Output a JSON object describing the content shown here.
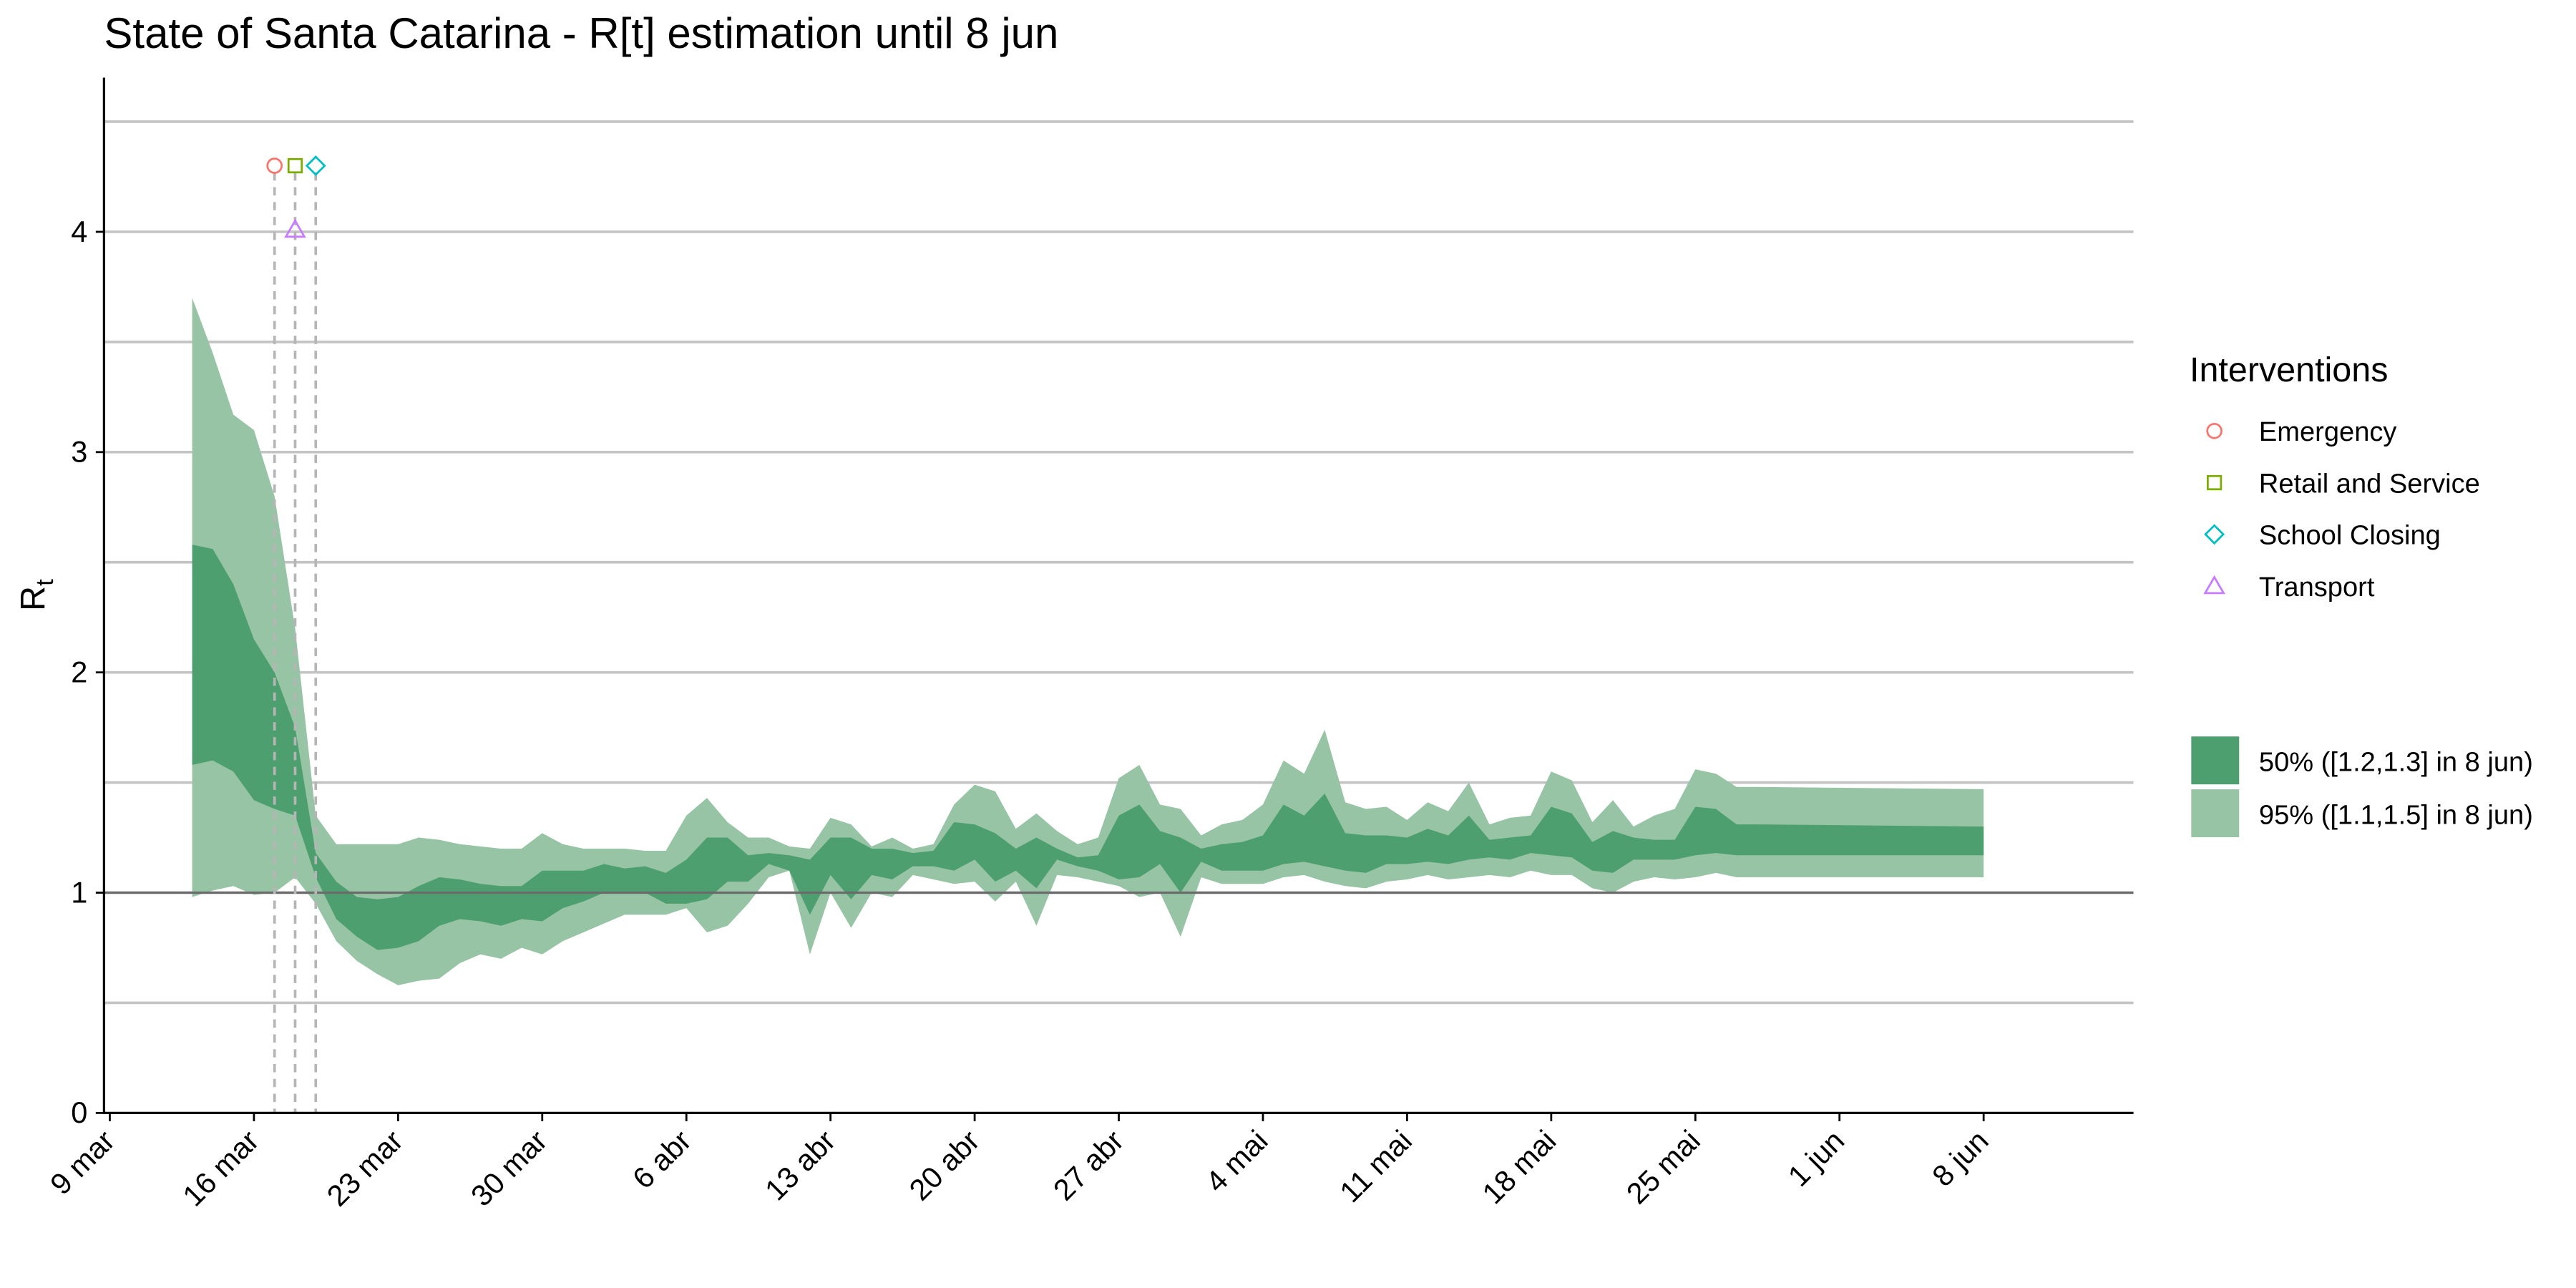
{
  "chart_data": {
    "type": "area",
    "title": "State of Santa Catarina - R[t] estimation until 8 jun",
    "ylabel": {
      "main": "R",
      "sub": "t"
    },
    "xlabel": "",
    "ylim": [
      0,
      4.7
    ],
    "x_range": [
      0,
      93
    ],
    "y_ticks": [
      0,
      1,
      2,
      3,
      4
    ],
    "minor_grid_y": [
      0.5,
      1.5,
      2.5,
      3.5,
      4.5
    ],
    "x_ticks": [
      {
        "label": "9 mar",
        "day": 0
      },
      {
        "label": "16 mar",
        "day": 7
      },
      {
        "label": "23 mar",
        "day": 14
      },
      {
        "label": "30 mar",
        "day": 21
      },
      {
        "label": "6 abr",
        "day": 28
      },
      {
        "label": "13 abr",
        "day": 35
      },
      {
        "label": "20 abr",
        "day": 42
      },
      {
        "label": "27 abr",
        "day": 49
      },
      {
        "label": "4 mai",
        "day": 56
      },
      {
        "label": "11 mai",
        "day": 63
      },
      {
        "label": "18 mai",
        "day": 70
      },
      {
        "label": "25 mai",
        "day": 77
      },
      {
        "label": "1 jun",
        "day": 84
      },
      {
        "label": "8 jun",
        "day": 91
      }
    ],
    "grid": true,
    "reference_line_y": 1,
    "colors": {
      "band50": "#4e9f70",
      "band95": "#97c4a5",
      "grid": "#c4c4c4",
      "refline": "#6b6b6b"
    },
    "series": [
      {
        "name": "95% ([1.1,1.5] in  8 jun)",
        "x": [
          4,
          5,
          6,
          7,
          8,
          9,
          10,
          11,
          12,
          13,
          14,
          15,
          16,
          17,
          18,
          19,
          20,
          21,
          22,
          23,
          24,
          25,
          26,
          27,
          28,
          29,
          30,
          31,
          32,
          33,
          34,
          35,
          36,
          37,
          38,
          39,
          40,
          41,
          42,
          43,
          44,
          45,
          46,
          47,
          48,
          49,
          50,
          51,
          52,
          53,
          54,
          55,
          56,
          57,
          58,
          59,
          60,
          61,
          62,
          63,
          64,
          65,
          66,
          67,
          68,
          69,
          70,
          71,
          72,
          73,
          74,
          75,
          76,
          77,
          78,
          79,
          80,
          91
        ],
        "upper": [
          3.7,
          3.45,
          3.17,
          3.1,
          2.8,
          2.2,
          1.35,
          1.22,
          1.22,
          1.22,
          1.22,
          1.25,
          1.24,
          1.22,
          1.21,
          1.2,
          1.2,
          1.27,
          1.22,
          1.2,
          1.2,
          1.2,
          1.19,
          1.19,
          1.35,
          1.43,
          1.32,
          1.25,
          1.25,
          1.21,
          1.2,
          1.34,
          1.31,
          1.21,
          1.25,
          1.2,
          1.22,
          1.4,
          1.49,
          1.46,
          1.29,
          1.36,
          1.28,
          1.22,
          1.25,
          1.52,
          1.58,
          1.4,
          1.38,
          1.26,
          1.31,
          1.33,
          1.4,
          1.6,
          1.54,
          1.74,
          1.41,
          1.38,
          1.39,
          1.33,
          1.41,
          1.37,
          1.5,
          1.31,
          1.34,
          1.35,
          1.55,
          1.51,
          1.32,
          1.42,
          1.3,
          1.35,
          1.38,
          1.56,
          1.54,
          1.48,
          1.48,
          1.47
        ],
        "lower": [
          0.98,
          1.01,
          1.03,
          0.99,
          1.0,
          1.07,
          0.95,
          0.78,
          0.69,
          0.63,
          0.58,
          0.6,
          0.61,
          0.68,
          0.72,
          0.7,
          0.75,
          0.72,
          0.78,
          0.82,
          0.86,
          0.9,
          0.9,
          0.9,
          0.93,
          0.82,
          0.85,
          0.95,
          1.07,
          1.1,
          0.72,
          1.0,
          0.84,
          1.0,
          0.98,
          1.08,
          1.06,
          1.04,
          1.05,
          0.96,
          1.05,
          0.85,
          1.08,
          1.07,
          1.05,
          1.03,
          0.98,
          1.0,
          0.8,
          1.07,
          1.04,
          1.04,
          1.04,
          1.07,
          1.08,
          1.05,
          1.03,
          1.02,
          1.05,
          1.06,
          1.08,
          1.06,
          1.07,
          1.08,
          1.07,
          1.1,
          1.08,
          1.08,
          1.02,
          1.0,
          1.05,
          1.07,
          1.06,
          1.07,
          1.09,
          1.07,
          1.07,
          1.07
        ]
      },
      {
        "name": "50% ([1.2,1.3] in  8 jun)",
        "x": [
          4,
          5,
          6,
          7,
          8,
          9,
          10,
          11,
          12,
          13,
          14,
          15,
          16,
          17,
          18,
          19,
          20,
          21,
          22,
          23,
          24,
          25,
          26,
          27,
          28,
          29,
          30,
          31,
          32,
          33,
          34,
          35,
          36,
          37,
          38,
          39,
          40,
          41,
          42,
          43,
          44,
          45,
          46,
          47,
          48,
          49,
          50,
          51,
          52,
          53,
          54,
          55,
          56,
          57,
          58,
          59,
          60,
          61,
          62,
          63,
          64,
          65,
          66,
          67,
          68,
          69,
          70,
          71,
          72,
          73,
          74,
          75,
          76,
          77,
          78,
          79,
          80,
          91
        ],
        "upper": [
          2.58,
          2.56,
          2.4,
          2.15,
          2.0,
          1.75,
          1.18,
          1.05,
          0.98,
          0.97,
          0.98,
          1.03,
          1.07,
          1.06,
          1.04,
          1.03,
          1.03,
          1.1,
          1.1,
          1.1,
          1.13,
          1.11,
          1.12,
          1.09,
          1.15,
          1.25,
          1.25,
          1.17,
          1.18,
          1.17,
          1.15,
          1.25,
          1.25,
          1.2,
          1.2,
          1.18,
          1.19,
          1.32,
          1.31,
          1.27,
          1.2,
          1.25,
          1.2,
          1.16,
          1.17,
          1.35,
          1.4,
          1.28,
          1.25,
          1.2,
          1.22,
          1.23,
          1.26,
          1.4,
          1.35,
          1.45,
          1.27,
          1.26,
          1.26,
          1.25,
          1.29,
          1.26,
          1.35,
          1.24,
          1.25,
          1.26,
          1.39,
          1.36,
          1.23,
          1.28,
          1.25,
          1.24,
          1.24,
          1.39,
          1.38,
          1.31,
          1.31,
          1.3
        ],
        "lower": [
          1.58,
          1.6,
          1.55,
          1.42,
          1.38,
          1.35,
          1.07,
          0.88,
          0.8,
          0.74,
          0.75,
          0.78,
          0.85,
          0.88,
          0.87,
          0.85,
          0.88,
          0.87,
          0.93,
          0.96,
          1.0,
          1.0,
          1.0,
          0.95,
          0.95,
          0.97,
          1.05,
          1.05,
          1.13,
          1.1,
          0.9,
          1.08,
          0.97,
          1.08,
          1.06,
          1.12,
          1.12,
          1.1,
          1.15,
          1.05,
          1.1,
          1.02,
          1.15,
          1.12,
          1.1,
          1.06,
          1.07,
          1.13,
          1.0,
          1.14,
          1.1,
          1.1,
          1.1,
          1.13,
          1.14,
          1.12,
          1.1,
          1.09,
          1.13,
          1.13,
          1.14,
          1.13,
          1.15,
          1.16,
          1.15,
          1.18,
          1.17,
          1.16,
          1.1,
          1.09,
          1.15,
          1.15,
          1.15,
          1.17,
          1.18,
          1.17,
          1.17,
          1.17
        ]
      }
    ],
    "interventions": [
      {
        "name": "Emergency",
        "day": 8,
        "marker_y": 4.3,
        "shape": "circle",
        "color": "#f8766d"
      },
      {
        "name": "Retail and Service",
        "day": 9,
        "marker_y": 4.3,
        "shape": "square",
        "color": "#7cae00"
      },
      {
        "name": "School Closing",
        "day": 10,
        "marker_y": 4.3,
        "shape": "diamond",
        "color": "#00bfc4"
      },
      {
        "name": "Transport",
        "day": 9,
        "marker_y": 4.01,
        "shape": "triangle",
        "color": "#c77cff"
      }
    ],
    "legend": {
      "interventions_title": "Interventions",
      "placement": "right"
    }
  }
}
